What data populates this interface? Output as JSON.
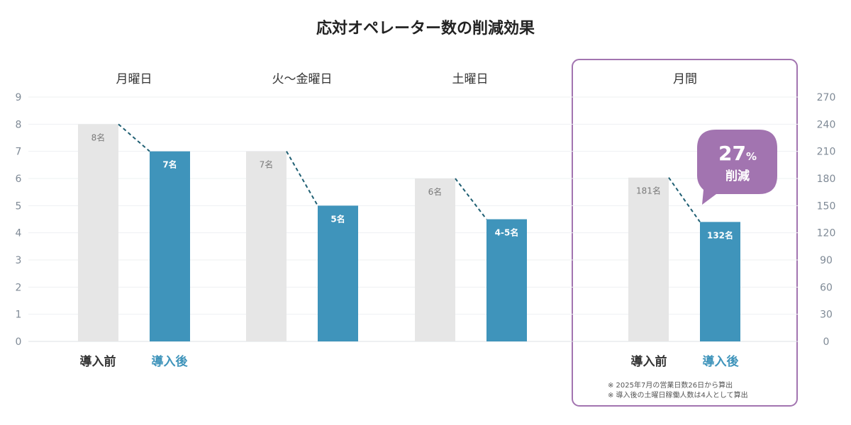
{
  "chart_data": {
    "type": "bar",
    "title": "応対オペレーター数の削減効果",
    "left_axis": {
      "ylim": [
        0,
        9
      ],
      "ticks": [
        "0",
        "1",
        "2",
        "3",
        "4",
        "5",
        "6",
        "7",
        "8",
        "9"
      ]
    },
    "right_axis": {
      "ylim": [
        0,
        270
      ],
      "ticks": [
        "0",
        "30",
        "60",
        "90",
        "120",
        "150",
        "180",
        "210",
        "240",
        "270"
      ]
    },
    "groups": [
      {
        "label": "月曜日",
        "axis": "left",
        "before": 8,
        "after": 7,
        "before_label": "8名",
        "after_label": "7名"
      },
      {
        "label": "火～金曜日",
        "axis": "left",
        "before": 7,
        "after": 5,
        "before_label": "7名",
        "after_label": "5名"
      },
      {
        "label": "土曜日",
        "axis": "left",
        "before": 6,
        "after": 4.5,
        "before_label": "6名",
        "after_label": "4-5名"
      },
      {
        "label": "月間",
        "axis": "right",
        "before": 181,
        "after": 132,
        "before_label": "181名",
        "after_label": "132名"
      }
    ],
    "series": [
      {
        "name": "導入前",
        "color": "#e6e6e6"
      },
      {
        "name": "導入後",
        "color": "#3f94bb"
      }
    ],
    "legend_left": [
      "導入前",
      "導入後"
    ],
    "legend_right": [
      "導入前",
      "導入後"
    ],
    "callout": {
      "number": "27",
      "unit": "%",
      "word": "削減",
      "color": "#a274b0"
    },
    "notes": [
      "※ 2025年7月の営業日数26日から算出",
      "※ 導入後の土曜日稼働人数は4人として算出"
    ],
    "highlight_color": "#a274b0",
    "connector_color": "#1f5f73",
    "grid": true
  }
}
